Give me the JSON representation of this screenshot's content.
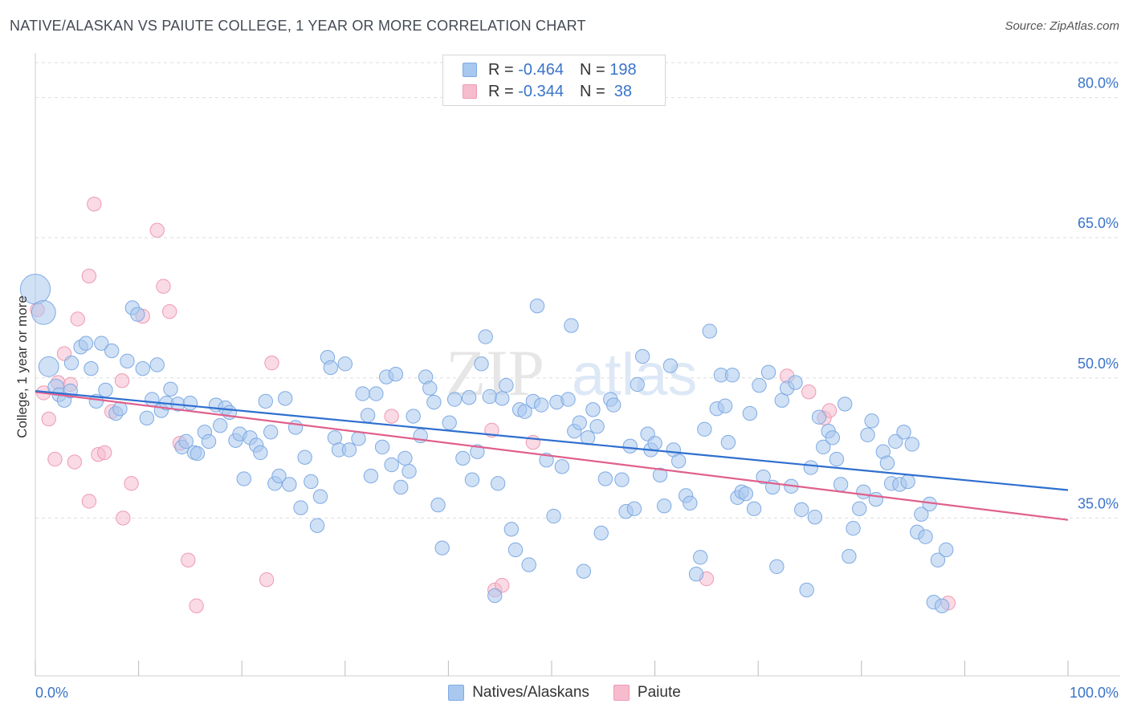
{
  "title": "NATIVE/ALASKAN VS PAIUTE COLLEGE, 1 YEAR OR MORE CORRELATION CHART",
  "source": "Source: ZipAtlas.com",
  "watermark": {
    "zip": "ZIP",
    "atlas": "atlas"
  },
  "legend": {
    "rows": [
      {
        "r_label": "R = ",
        "r_value": "-0.464",
        "n_label": "N = ",
        "n_value": "198"
      },
      {
        "r_label": "R = ",
        "r_value": "-0.344",
        "n_label": "N = ",
        "n_value": " 38"
      }
    ]
  },
  "bottom_legend": {
    "series1": "Natives/Alaskans",
    "series2": "Paiute"
  },
  "colors": {
    "blue_fill": "#a9c8ef",
    "blue_stroke": "#7eaae3",
    "blue_line": "#2f6fcf",
    "pink_fill": "#f6bccd",
    "pink_stroke": "#ee9ab3",
    "pink_line": "#e0608c",
    "tick_label": "#3a74c9",
    "grid": "#dddddd"
  },
  "chart_data": {
    "type": "scatter",
    "title": "NATIVE/ALASKAN VS PAIUTE COLLEGE, 1 YEAR OR MORE CORRELATION CHART",
    "xlabel": "",
    "ylabel": "College, 1 year or more",
    "xlim": [
      0,
      100
    ],
    "ylim": [
      20,
      84
    ],
    "x_tick_labels": [
      "0.0%",
      "100.0%"
    ],
    "y_ticks": [
      35,
      50,
      65,
      80
    ],
    "y_tick_labels": [
      "35.0%",
      "50.0%",
      "65.0%",
      "80.0%"
    ],
    "grid": true,
    "legend_position": "top-center",
    "series": [
      {
        "name": "Natives/Alaskans",
        "r": -0.464,
        "n": 198,
        "trend": {
          "x": [
            0,
            100
          ],
          "y": [
            48.6,
            38.0
          ]
        },
        "points": [
          [
            0,
            59.5,
            30
          ],
          [
            0.8,
            57.0,
            24
          ],
          [
            1.3,
            51.2,
            20
          ],
          [
            2.0,
            49.0,
            16
          ],
          [
            2.3,
            48.2,
            14
          ],
          [
            2.8,
            47.6,
            14
          ],
          [
            3.4,
            48.6,
            14
          ],
          [
            3.5,
            51.6,
            14
          ],
          [
            4.4,
            53.3,
            14
          ],
          [
            4.9,
            53.7,
            14
          ],
          [
            5.4,
            51.0,
            14
          ],
          [
            5.9,
            47.5,
            14
          ],
          [
            6.4,
            53.7,
            14
          ],
          [
            6.8,
            48.7,
            14
          ],
          [
            7.4,
            52.9,
            14
          ],
          [
            7.8,
            46.2,
            14
          ],
          [
            8.2,
            46.7,
            14
          ],
          [
            8.9,
            51.8,
            14
          ],
          [
            9.4,
            57.5,
            14
          ],
          [
            9.9,
            56.8,
            14
          ],
          [
            10.4,
            51.0,
            14
          ],
          [
            10.8,
            45.7,
            14
          ],
          [
            11.3,
            47.7,
            14
          ],
          [
            11.8,
            51.4,
            14
          ],
          [
            12.2,
            46.5,
            14
          ],
          [
            12.7,
            47.3,
            14
          ],
          [
            13.1,
            48.8,
            14
          ],
          [
            13.8,
            47.2,
            14
          ],
          [
            14.2,
            42.6,
            14
          ],
          [
            14.6,
            43.2,
            14
          ],
          [
            15.0,
            47.3,
            14
          ],
          [
            15.4,
            42.0,
            14
          ],
          [
            15.7,
            41.9,
            14
          ],
          [
            16.4,
            44.2,
            14
          ],
          [
            16.8,
            43.2,
            14
          ],
          [
            17.5,
            47.1,
            14
          ],
          [
            17.9,
            44.9,
            14
          ],
          [
            18.4,
            46.8,
            14
          ],
          [
            18.8,
            46.3,
            14
          ],
          [
            19.4,
            43.3,
            14
          ],
          [
            19.8,
            44.0,
            14
          ],
          [
            20.2,
            39.2,
            14
          ],
          [
            20.8,
            43.6,
            14
          ],
          [
            21.4,
            42.8,
            14
          ],
          [
            21.8,
            42.0,
            14
          ],
          [
            22.3,
            47.5,
            14
          ],
          [
            22.8,
            44.2,
            14
          ],
          [
            23.2,
            38.7,
            14
          ],
          [
            23.6,
            39.5,
            14
          ],
          [
            24.2,
            47.8,
            14
          ],
          [
            24.6,
            38.6,
            14
          ],
          [
            25.2,
            44.7,
            14
          ],
          [
            25.7,
            36.1,
            14
          ],
          [
            26.1,
            41.5,
            14
          ],
          [
            26.7,
            38.9,
            14
          ],
          [
            27.3,
            34.2,
            14
          ],
          [
            27.6,
            37.3,
            14
          ],
          [
            28.3,
            52.2,
            14
          ],
          [
            28.6,
            51.1,
            14
          ],
          [
            29.0,
            43.6,
            14
          ],
          [
            29.4,
            42.3,
            14
          ],
          [
            30.0,
            51.5,
            14
          ],
          [
            30.4,
            42.3,
            14
          ],
          [
            31.3,
            43.5,
            14
          ],
          [
            31.7,
            48.3,
            14
          ],
          [
            32.2,
            46.0,
            14
          ],
          [
            32.5,
            39.5,
            14
          ],
          [
            33.0,
            48.3,
            14
          ],
          [
            33.6,
            42.6,
            14
          ],
          [
            34.0,
            50.1,
            14
          ],
          [
            34.5,
            40.7,
            14
          ],
          [
            34.9,
            50.4,
            14
          ],
          [
            35.4,
            38.3,
            14
          ],
          [
            35.8,
            41.4,
            14
          ],
          [
            36.2,
            40.0,
            14
          ],
          [
            36.6,
            45.9,
            14
          ],
          [
            37.3,
            43.8,
            14
          ],
          [
            37.8,
            50.1,
            14
          ],
          [
            38.2,
            48.9,
            14
          ],
          [
            38.6,
            47.4,
            14
          ],
          [
            39.0,
            36.4,
            14
          ],
          [
            39.4,
            31.8,
            14
          ],
          [
            40.1,
            45.2,
            14
          ],
          [
            40.6,
            47.7,
            14
          ],
          [
            41.4,
            41.4,
            14
          ],
          [
            42.0,
            47.9,
            14
          ],
          [
            42.3,
            39.1,
            14
          ],
          [
            42.8,
            42.1,
            14
          ],
          [
            43.2,
            51.5,
            14
          ],
          [
            43.6,
            54.4,
            14
          ],
          [
            44.0,
            48.0,
            14
          ],
          [
            44.5,
            26.7,
            14
          ],
          [
            44.8,
            38.7,
            14
          ],
          [
            45.2,
            47.8,
            14
          ],
          [
            45.6,
            49.2,
            14
          ],
          [
            46.1,
            33.8,
            14
          ],
          [
            46.5,
            31.6,
            14
          ],
          [
            46.9,
            46.6,
            14
          ],
          [
            47.4,
            46.4,
            14
          ],
          [
            47.8,
            30.0,
            14
          ],
          [
            48.2,
            47.5,
            14
          ],
          [
            48.6,
            57.7,
            14
          ],
          [
            49.0,
            47.1,
            14
          ],
          [
            49.5,
            41.2,
            14
          ],
          [
            50.2,
            35.2,
            14
          ],
          [
            50.5,
            47.4,
            14
          ],
          [
            51.0,
            40.5,
            14
          ],
          [
            51.6,
            47.7,
            14
          ],
          [
            51.9,
            55.6,
            14
          ],
          [
            52.2,
            44.3,
            14
          ],
          [
            52.7,
            45.2,
            14
          ],
          [
            53.1,
            29.3,
            14
          ],
          [
            53.5,
            43.6,
            14
          ],
          [
            54.0,
            46.6,
            14
          ],
          [
            54.4,
            44.8,
            14
          ],
          [
            54.8,
            33.4,
            14
          ],
          [
            55.2,
            39.2,
            14
          ],
          [
            55.7,
            47.7,
            14
          ],
          [
            56.0,
            47.1,
            14
          ],
          [
            56.8,
            39.1,
            14
          ],
          [
            57.2,
            35.7,
            14
          ],
          [
            57.6,
            42.7,
            14
          ],
          [
            58.0,
            36.0,
            14
          ],
          [
            58.3,
            49.3,
            14
          ],
          [
            58.8,
            52.3,
            14
          ],
          [
            59.3,
            44.0,
            14
          ],
          [
            59.6,
            42.3,
            14
          ],
          [
            60.0,
            43.0,
            14
          ],
          [
            60.5,
            39.6,
            14
          ],
          [
            60.9,
            36.3,
            14
          ],
          [
            61.5,
            51.3,
            14
          ],
          [
            61.8,
            42.3,
            14
          ],
          [
            62.3,
            41.1,
            14
          ],
          [
            63.0,
            37.4,
            14
          ],
          [
            63.4,
            36.6,
            14
          ],
          [
            64.0,
            29.0,
            14
          ],
          [
            64.4,
            30.8,
            14
          ],
          [
            64.8,
            44.5,
            14
          ],
          [
            65.3,
            55.0,
            14
          ],
          [
            66.0,
            46.7,
            14
          ],
          [
            66.4,
            50.3,
            14
          ],
          [
            66.8,
            47.0,
            14
          ],
          [
            67.1,
            43.1,
            14
          ],
          [
            67.5,
            50.3,
            14
          ],
          [
            68.0,
            37.2,
            14
          ],
          [
            68.4,
            37.8,
            14
          ],
          [
            68.8,
            37.6,
            14
          ],
          [
            69.2,
            46.2,
            14
          ],
          [
            69.6,
            36.0,
            14
          ],
          [
            70.1,
            49.2,
            14
          ],
          [
            70.5,
            39.4,
            14
          ],
          [
            71.0,
            50.6,
            14
          ],
          [
            71.4,
            38.3,
            14
          ],
          [
            71.8,
            29.8,
            14
          ],
          [
            72.3,
            47.6,
            14
          ],
          [
            72.8,
            48.9,
            14
          ],
          [
            73.2,
            38.4,
            14
          ],
          [
            73.6,
            49.5,
            14
          ],
          [
            74.2,
            35.9,
            14
          ],
          [
            74.7,
            27.3,
            14
          ],
          [
            75.1,
            40.4,
            14
          ],
          [
            75.5,
            35.1,
            14
          ],
          [
            75.9,
            45.8,
            14
          ],
          [
            76.3,
            42.6,
            14
          ],
          [
            76.8,
            44.3,
            14
          ],
          [
            77.2,
            43.6,
            14
          ],
          [
            77.6,
            41.3,
            14
          ],
          [
            78.0,
            38.6,
            14
          ],
          [
            78.4,
            47.2,
            14
          ],
          [
            78.8,
            30.9,
            14
          ],
          [
            79.2,
            33.9,
            14
          ],
          [
            79.8,
            36.0,
            14
          ],
          [
            80.2,
            37.8,
            14
          ],
          [
            80.6,
            43.9,
            14
          ],
          [
            81.0,
            45.4,
            14
          ],
          [
            81.4,
            37.0,
            14
          ],
          [
            82.1,
            42.1,
            14
          ],
          [
            82.5,
            40.9,
            14
          ],
          [
            82.9,
            38.7,
            14
          ],
          [
            83.3,
            43.2,
            14
          ],
          [
            83.7,
            38.6,
            14
          ],
          [
            84.1,
            44.2,
            14
          ],
          [
            84.5,
            38.9,
            14
          ],
          [
            84.9,
            42.9,
            14
          ],
          [
            85.4,
            33.5,
            14
          ],
          [
            85.8,
            35.4,
            14
          ],
          [
            86.2,
            33.0,
            14
          ],
          [
            86.6,
            36.5,
            14
          ],
          [
            87.0,
            26.0,
            14
          ],
          [
            87.4,
            30.5,
            14
          ],
          [
            87.8,
            25.6,
            14
          ],
          [
            88.2,
            31.6,
            14
          ]
        ]
      },
      {
        "name": "Paiute",
        "r": -0.344,
        "n": 38,
        "trend": {
          "x": [
            0,
            100
          ],
          "y": [
            48.5,
            34.8
          ]
        },
        "points": [
          [
            0.2,
            57.3,
            14
          ],
          [
            0.8,
            48.4,
            14
          ],
          [
            1.3,
            45.6,
            14
          ],
          [
            1.9,
            41.3,
            14
          ],
          [
            2.2,
            49.5,
            14
          ],
          [
            2.8,
            52.6,
            14
          ],
          [
            3.4,
            49.3,
            14
          ],
          [
            3.8,
            41.0,
            14
          ],
          [
            4.1,
            56.3,
            14
          ],
          [
            5.2,
            60.9,
            14
          ],
          [
            5.2,
            36.8,
            14
          ],
          [
            5.7,
            68.6,
            14
          ],
          [
            6.1,
            41.8,
            14
          ],
          [
            6.7,
            42.0,
            14
          ],
          [
            7.4,
            46.4,
            14
          ],
          [
            8.4,
            49.7,
            14
          ],
          [
            8.5,
            35.0,
            14
          ],
          [
            9.3,
            38.7,
            14
          ],
          [
            10.4,
            56.6,
            14
          ],
          [
            11.8,
            65.8,
            14
          ],
          [
            12.4,
            59.8,
            14
          ],
          [
            13.0,
            57.1,
            14
          ],
          [
            14.0,
            43.0,
            14
          ],
          [
            14.8,
            30.5,
            14
          ],
          [
            15.6,
            25.6,
            14
          ],
          [
            22.4,
            28.4,
            14
          ],
          [
            22.9,
            51.6,
            14
          ],
          [
            34.5,
            45.9,
            14
          ],
          [
            44.2,
            44.4,
            14
          ],
          [
            44.5,
            27.3,
            14
          ],
          [
            45.2,
            27.8,
            14
          ],
          [
            48.2,
            43.1,
            14
          ],
          [
            65.0,
            28.5,
            14
          ],
          [
            72.8,
            50.2,
            14
          ],
          [
            74.9,
            48.5,
            14
          ],
          [
            76.4,
            45.7,
            14
          ],
          [
            76.9,
            46.5,
            14
          ],
          [
            88.4,
            25.9,
            14
          ]
        ]
      }
    ]
  }
}
